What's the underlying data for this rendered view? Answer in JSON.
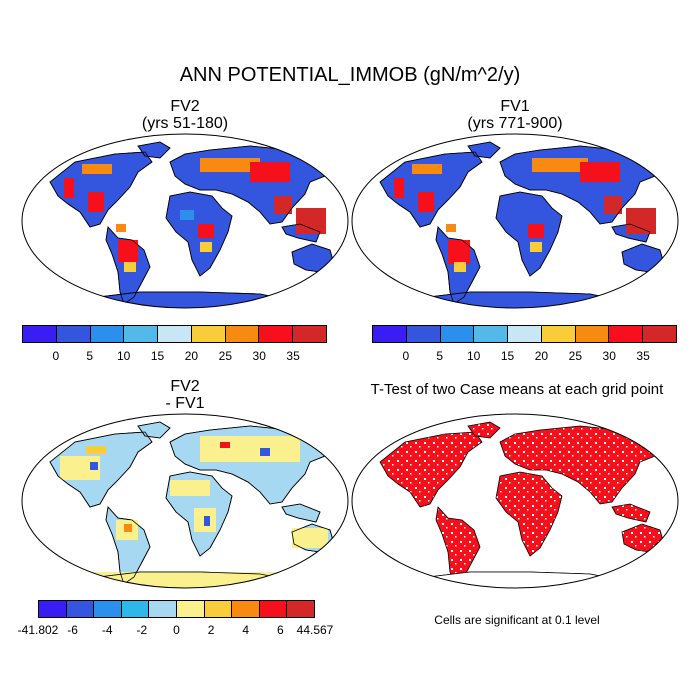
{
  "title": "ANN POTENTIAL_IMMOB (gN/m^2/y)",
  "panels": {
    "fv2": {
      "line1": "FV2",
      "line2": "(yrs 51-180)"
    },
    "fv1": {
      "line1": "FV1",
      "line2": "(yrs 771-900)"
    },
    "diff": {
      "line1": "FV2",
      "line2": "- FV1"
    },
    "ttest": {
      "line1": "T-Test of two Case means at each grid point"
    }
  },
  "colorbars": {
    "abs": {
      "colors": [
        "#3a1cf5",
        "#3455dd",
        "#2b8fec",
        "#55b8ea",
        "#c8e6f5",
        "#f9cc3a",
        "#f88a12",
        "#f5101b",
        "#d42828"
      ],
      "labels": [
        "0",
        "5",
        "10",
        "15",
        "20",
        "25",
        "30",
        "35"
      ]
    },
    "diff": {
      "colors": [
        "#3a1cf5",
        "#3455dd",
        "#2b8fec",
        "#2eb8ea",
        "#a7d8f2",
        "#fbf08e",
        "#f9cc3a",
        "#f88a12",
        "#f5101b",
        "#d42828"
      ],
      "labels": [
        "-41.802",
        "-6",
        "-4",
        "-2",
        "0",
        "2",
        "4",
        "6",
        "44.567"
      ]
    }
  },
  "note": "Cells are significant at 0.1 level"
}
